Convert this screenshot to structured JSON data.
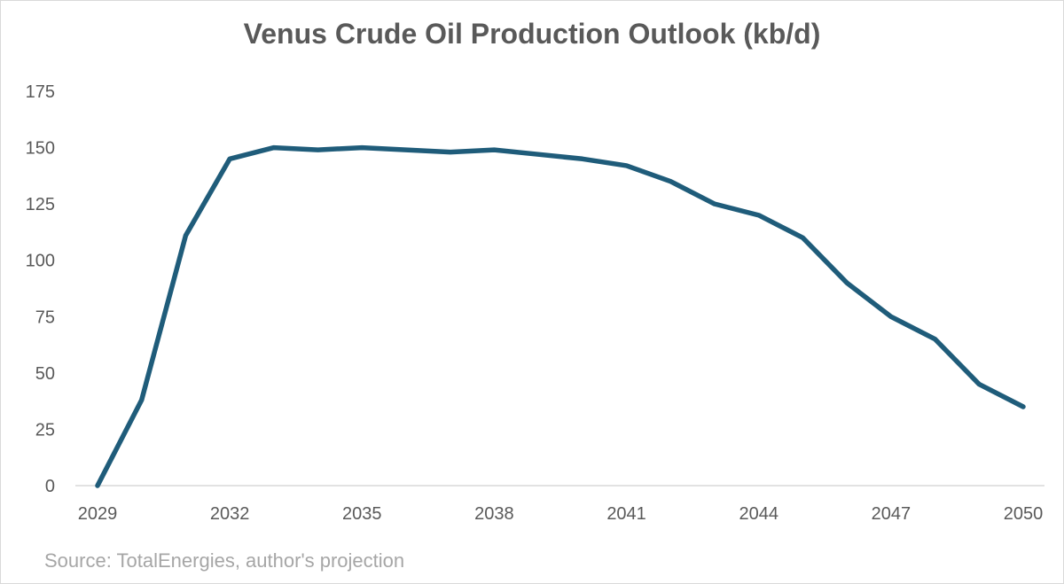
{
  "chart_data": {
    "type": "line",
    "title": "Venus Crude Oil Production Outlook (kb/d)",
    "xlabel": "",
    "ylabel": "",
    "x": [
      2029,
      2030,
      2031,
      2032,
      2033,
      2034,
      2035,
      2036,
      2037,
      2038,
      2039,
      2040,
      2041,
      2042,
      2043,
      2044,
      2045,
      2046,
      2047,
      2048,
      2049,
      2050
    ],
    "series": [
      {
        "values": [
          0,
          38,
          111,
          145,
          150,
          149,
          150,
          149,
          148,
          149,
          147,
          145,
          142,
          135,
          125,
          120,
          110,
          90,
          75,
          65,
          45,
          35
        ],
        "color": "#1f5c7a"
      }
    ],
    "x_ticks": [
      "2029",
      "2032",
      "2035",
      "2038",
      "2041",
      "2044",
      "2047",
      "2050"
    ],
    "y_ticks": [
      "0",
      "25",
      "50",
      "75",
      "100",
      "125",
      "150",
      "175"
    ],
    "ylim": [
      0,
      175
    ],
    "xlim": [
      2029,
      2050
    ],
    "grid": false,
    "legend": "none"
  },
  "source_note": "Source: TotalEnergies, author's projection"
}
